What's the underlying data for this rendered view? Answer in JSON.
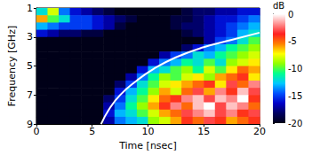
{
  "chart_data": {
    "type": "heatmap",
    "xlabel": "Time [nsec]",
    "ylabel": "Frequency [GHz]",
    "xlim": [
      0,
      20
    ],
    "xticks": [
      0,
      5,
      10,
      15,
      20
    ],
    "ylim": [
      1,
      9
    ],
    "yticks": [
      1,
      3,
      5,
      7,
      9
    ],
    "grid": false,
    "x_edges": [
      0,
      1,
      2,
      3,
      4,
      5,
      6,
      7,
      8,
      9,
      10,
      11,
      12,
      13,
      14,
      15,
      16,
      17,
      18,
      19,
      20
    ],
    "y_edges": [
      1,
      1.5,
      2,
      2.5,
      3,
      3.5,
      4,
      4.5,
      5,
      5.5,
      6,
      6.5,
      7,
      7.5,
      8,
      8.5,
      9
    ],
    "cells": [
      [
        -12,
        -8,
        -14,
        -16,
        -17,
        -18,
        -19,
        -20,
        -20,
        -20,
        -20,
        -20,
        -20,
        -19,
        -18,
        -18,
        -17,
        -17,
        -16,
        -16
      ],
      [
        -6,
        -10,
        -12,
        -15,
        -15,
        -16,
        -17,
        -18,
        -19,
        -20,
        -20,
        -20,
        -19,
        -19,
        -18,
        -17,
        -16,
        -16,
        -15,
        -14
      ],
      [
        -13,
        -14,
        -15,
        -15,
        -15,
        -16,
        -17,
        -19,
        -20,
        -20,
        -20,
        -20,
        -19,
        -18,
        -18,
        -17,
        -16,
        -15,
        -14,
        -13
      ],
      [
        -16,
        -17,
        -18,
        -18,
        -19,
        -19,
        -20,
        -20,
        -20,
        -20,
        -20,
        -20,
        -20,
        -19,
        -18,
        -17,
        -16,
        -15,
        -13,
        -12
      ],
      [
        -20,
        -20,
        -20,
        -20,
        -20,
        -20,
        -20,
        -20,
        -20,
        -20,
        -20,
        -20,
        -20,
        -20,
        -20,
        -17,
        -15,
        -14,
        -12,
        -10
      ],
      [
        -20,
        -20,
        -20,
        -20,
        -20,
        -20,
        -20,
        -20,
        -20,
        -20,
        -20,
        -20,
        -20,
        -18,
        -16,
        -14,
        -13,
        -11,
        -10,
        -9
      ],
      [
        -20,
        -20,
        -20,
        -20,
        -20,
        -20,
        -20,
        -20,
        -20,
        -20,
        -20,
        -17,
        -15,
        -14,
        -12,
        -13,
        -11,
        -10,
        -9,
        -8
      ],
      [
        -20,
        -20,
        -20,
        -20,
        -20,
        -20,
        -20,
        -20,
        -20,
        -20,
        -16,
        -14,
        -13,
        -11,
        -12,
        -10,
        -12,
        -9,
        -8,
        -7
      ],
      [
        -20,
        -20,
        -20,
        -20,
        -20,
        -20,
        -20,
        -20,
        -20,
        -16,
        -13,
        -12,
        -10,
        -9,
        -11,
        -8,
        -10,
        -7,
        -5,
        -6
      ],
      [
        -20,
        -20,
        -20,
        -20,
        -20,
        -20,
        -20,
        -20,
        -17,
        -14,
        -11,
        -9,
        -10,
        -8,
        -7,
        -9,
        -6,
        -5,
        -4,
        -7
      ],
      [
        -20,
        -20,
        -20,
        -20,
        -20,
        -20,
        -20,
        -18,
        -15,
        -12,
        -10,
        -8,
        -7,
        -6,
        -5,
        -4,
        -7,
        -3,
        -5,
        -2
      ],
      [
        -20,
        -20,
        -20,
        -20,
        -20,
        -20,
        -20,
        -16,
        -13,
        -11,
        -9,
        -6,
        -8,
        -5,
        -3,
        -6,
        -2,
        -4,
        -1,
        -3
      ],
      [
        -20,
        -20,
        -20,
        -20,
        -20,
        -20,
        -18,
        -15,
        -12,
        -10,
        -7,
        -5,
        -4,
        -2,
        -1,
        -3,
        -1,
        -2,
        0,
        -4
      ],
      [
        -20,
        -20,
        -20,
        -20,
        -20,
        -20,
        -17,
        -14,
        -11,
        -9,
        -6,
        -4,
        -2,
        -5,
        -1,
        0,
        -3,
        -1,
        -2,
        -5
      ],
      [
        -20,
        -20,
        -20,
        -20,
        -20,
        -20,
        -16,
        -13,
        -12,
        -10,
        -8,
        -6,
        -5,
        -3,
        -2,
        -1,
        -3,
        -2,
        -4,
        -3
      ],
      [
        -20,
        -20,
        -20,
        -20,
        -20,
        -20,
        -17,
        -14,
        -13,
        -12,
        -9,
        -8,
        -6,
        -4,
        -5,
        -3,
        -4,
        -6,
        -5,
        -4
      ]
    ],
    "colorbar": {
      "label": "dB",
      "range": [
        -20,
        0
      ],
      "ticks": [
        0,
        -5,
        -10,
        -15,
        -20
      ]
    },
    "series": [
      {
        "type": "line",
        "color": "#ffffff",
        "x": [
          5.8,
          6.5,
          7.5,
          9,
          10.5,
          12.5,
          15,
          17.5,
          20
        ],
        "values": [
          9,
          8,
          7,
          6,
          5.2,
          4.4,
          3.7,
          3.2,
          2.7
        ]
      }
    ]
  }
}
